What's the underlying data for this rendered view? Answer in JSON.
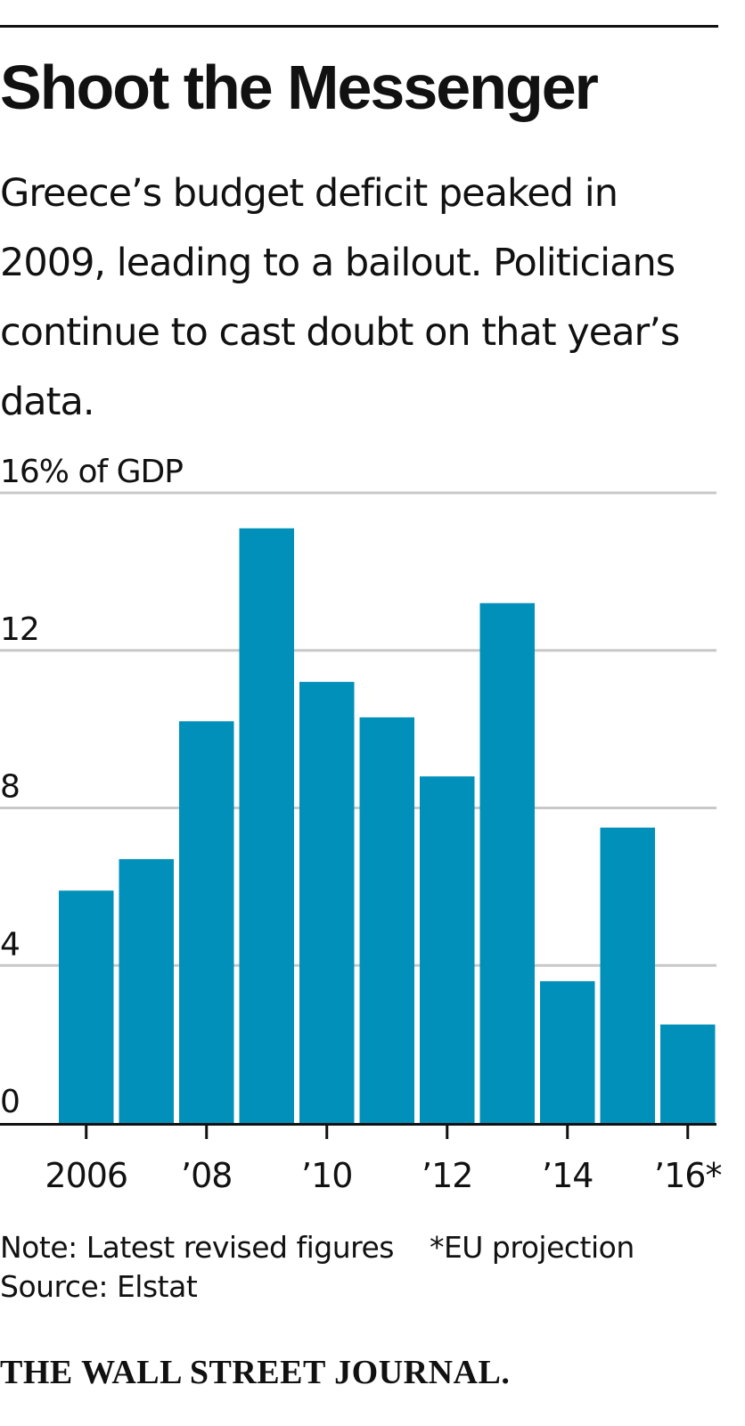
{
  "header": {
    "title": "Shoot the Messenger",
    "subtitle": "Greece’s budget deficit peaked in 2009, leading to a bailout. Politicians continue to cast doubt on that year’s data."
  },
  "footer": {
    "note": "Note: Latest revised figures",
    "footnote": "*EU projection",
    "source": "Source: Elstat",
    "masthead": "THE WALL STREET JOURNAL."
  },
  "colors": {
    "bar": "#0090b9",
    "grid": "#c8c8c8",
    "axis": "#111111",
    "text": "#111111"
  },
  "chart_data": {
    "type": "bar",
    "title": "Shoot the Messenger",
    "ylabel": "16% of GDP",
    "x": [
      2006,
      2007,
      2008,
      2009,
      2010,
      2011,
      2012,
      2013,
      2014,
      2015,
      2016
    ],
    "values": [
      5.9,
      6.7,
      10.2,
      15.1,
      11.2,
      10.3,
      8.8,
      13.2,
      3.6,
      7.5,
      2.5
    ],
    "ylim": [
      0,
      16
    ],
    "yticks": [
      {
        "value": 0,
        "label": "0"
      },
      {
        "value": 4,
        "label": "4"
      },
      {
        "value": 8,
        "label": "8"
      },
      {
        "value": 12,
        "label": "12"
      },
      {
        "value": 16,
        "label": "16% of GDP"
      }
    ],
    "xticks": [
      {
        "value": 2006,
        "label": "2006"
      },
      {
        "value": 2008,
        "label": "’08"
      },
      {
        "value": 2010,
        "label": "’10"
      },
      {
        "value": 2012,
        "label": "’12"
      },
      {
        "value": 2014,
        "label": "’14"
      },
      {
        "value": 2016,
        "label": "’16*"
      }
    ],
    "grid": true
  }
}
